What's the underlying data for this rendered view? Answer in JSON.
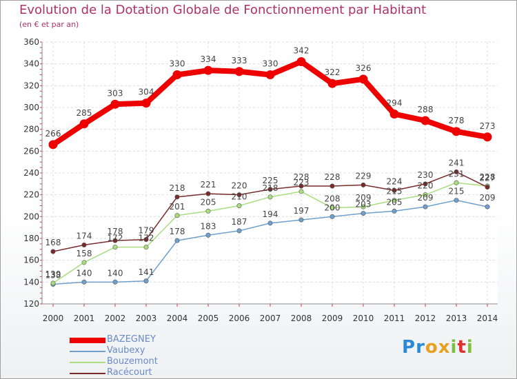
{
  "header": {
    "title": "Evolution de la Dotation Globale de Fonctionnement par Habitant",
    "subtitle": "(en € et par an)"
  },
  "chart_data": {
    "type": "line",
    "title": "Evolution de la Dotation Globale de Fonctionnement par Habitant",
    "subtitle": "(en € et par an)",
    "xlabel": "",
    "ylabel": "",
    "ylim": [
      120,
      360
    ],
    "yticks": [
      120,
      140,
      160,
      180,
      200,
      220,
      240,
      260,
      280,
      300,
      320,
      340,
      360
    ],
    "grid": true,
    "x": [
      "2000",
      "2001",
      "2002",
      "2003",
      "2004",
      "2005",
      "2006",
      "2007",
      "2008",
      "2009",
      "2010",
      "2011",
      "2012",
      "2013",
      "2014"
    ],
    "series": [
      {
        "name": "BAZEGNEY",
        "color": "#ee0000",
        "values": [
          266,
          285,
          303,
          304,
          330,
          334,
          333,
          330,
          342,
          322,
          326,
          294,
          288,
          278,
          273
        ]
      },
      {
        "name": "Vaubexy",
        "color": "#6f9fcc",
        "values": [
          138,
          140,
          140,
          141,
          178,
          183,
          187,
          194,
          197,
          200,
          203,
          205,
          209,
          215,
          209
        ]
      },
      {
        "name": "Bouzemont",
        "color": "#a9dd7f",
        "values": [
          139,
          158,
          172,
          172,
          201,
          205,
          210,
          218,
          223,
          208,
          209,
          215,
          220,
          231,
          228
        ]
      },
      {
        "name": "Racécourt",
        "color": "#7a2a2a",
        "values": [
          168,
          174,
          178,
          179,
          218,
          221,
          220,
          225,
          228,
          228,
          229,
          224,
          230,
          241,
          227
        ]
      }
    ]
  },
  "legend": {
    "items": [
      {
        "label": "BAZEGNEY",
        "color": "#ee0000"
      },
      {
        "label": "Vaubexy",
        "color": "#6f9fcc"
      },
      {
        "label": "Bouzemont",
        "color": "#a9dd7f"
      },
      {
        "label": "Racécourt",
        "color": "#7a2a2a"
      }
    ]
  },
  "logo": {
    "letters": [
      {
        "ch": "P",
        "color": "#2a8ad8"
      },
      {
        "ch": "r",
        "color": "#2a8ad8"
      },
      {
        "ch": "o",
        "color": "#e8a020"
      },
      {
        "ch": "x",
        "color": "#e8a020"
      },
      {
        "ch": "i",
        "color": "#7cc043"
      },
      {
        "ch": "t",
        "color": "#e03030"
      },
      {
        "ch": "i",
        "color": "#7cc043"
      }
    ]
  }
}
